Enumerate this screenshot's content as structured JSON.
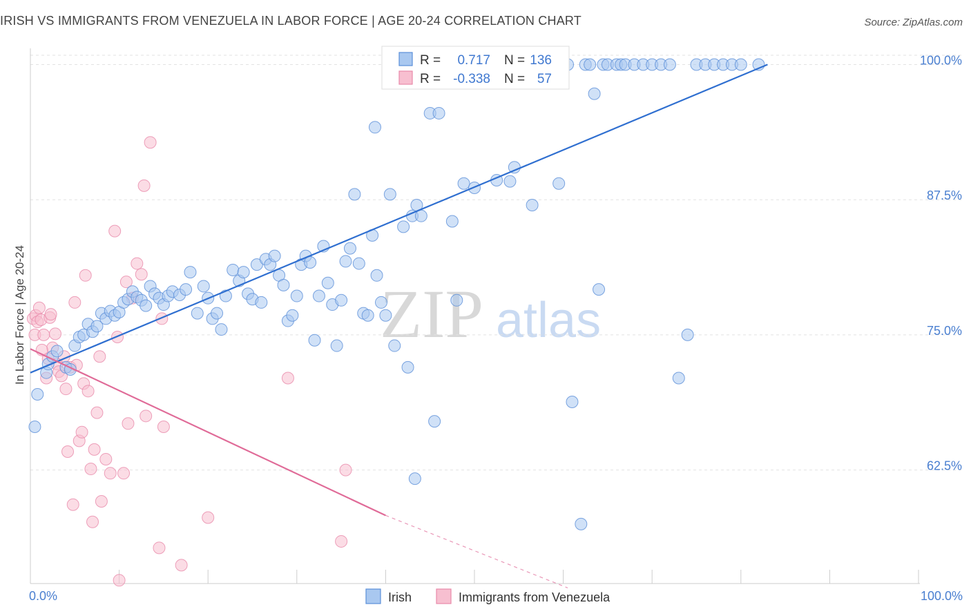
{
  "title": "IRISH VS IMMIGRANTS FROM VENEZUELA IN LABOR FORCE | AGE 20-24 CORRELATION CHART",
  "source": "Source: ZipAtlas.com",
  "watermark": {
    "zip": "ZIP",
    "atlas": "atlas"
  },
  "stats_legend": {
    "r_label": "R =",
    "n_label": "N =",
    "rows": [
      {
        "r": "0.717",
        "n": "136"
      },
      {
        "r": "-0.338",
        "n": "57"
      }
    ]
  },
  "chart_data": {
    "type": "scatter",
    "title": "IRISH VS IMMIGRANTS FROM VENEZUELA IN LABOR FORCE | AGE 20-24 CORRELATION CHART",
    "xlabel": "",
    "ylabel": "In Labor Force | Age 20-24",
    "xlim": [
      0,
      100
    ],
    "ylim": [
      52,
      101.5
    ],
    "x_tick_labels": [
      "0.0%",
      "100.0%"
    ],
    "y_ticks": [
      62.5,
      75.0,
      87.5,
      100.0
    ],
    "y_tick_labels": [
      "62.5%",
      "75.0%",
      "87.5%",
      "100.0%"
    ],
    "grid": true,
    "legend_position": "bottom-center",
    "colors": {
      "irish_fill": "#a9c8f0",
      "irish_stroke": "#5b8fd8",
      "irish_line": "#2f6fd0",
      "ven_fill": "#f7bfd0",
      "ven_stroke": "#e88aaa",
      "ven_line": "#e06b98"
    },
    "series": [
      {
        "name": "Irish",
        "trend": {
          "x0": 0,
          "y0": 71.5,
          "x1": 83,
          "y1": 100
        },
        "points": [
          [
            0.5,
            66.5
          ],
          [
            0.8,
            69.5
          ],
          [
            1.8,
            71.5
          ],
          [
            2.0,
            72.3
          ],
          [
            2.5,
            73.0
          ],
          [
            3.0,
            73.5
          ],
          [
            4.0,
            72.0
          ],
          [
            4.5,
            71.8
          ],
          [
            5.0,
            74.0
          ],
          [
            5.5,
            74.8
          ],
          [
            6.0,
            75.0
          ],
          [
            6.5,
            76.0
          ],
          [
            7.0,
            75.3
          ],
          [
            7.5,
            75.8
          ],
          [
            8.0,
            77.0
          ],
          [
            8.5,
            76.5
          ],
          [
            9.0,
            77.2
          ],
          [
            9.5,
            76.8
          ],
          [
            10.0,
            77.1
          ],
          [
            10.5,
            78.0
          ],
          [
            11.0,
            78.3
          ],
          [
            11.5,
            79.0
          ],
          [
            12.0,
            78.5
          ],
          [
            12.5,
            78.2
          ],
          [
            13.0,
            77.7
          ],
          [
            13.5,
            79.5
          ],
          [
            14.0,
            78.8
          ],
          [
            14.5,
            78.4
          ],
          [
            15.0,
            77.8
          ],
          [
            15.5,
            78.6
          ],
          [
            16.0,
            79.0
          ],
          [
            16.8,
            78.7
          ],
          [
            17.5,
            79.2
          ],
          [
            18.0,
            80.8
          ],
          [
            18.8,
            77.0
          ],
          [
            19.5,
            79.5
          ],
          [
            20.0,
            78.4
          ],
          [
            20.5,
            76.5
          ],
          [
            21.0,
            77.0
          ],
          [
            21.5,
            75.5
          ],
          [
            22.0,
            78.6
          ],
          [
            22.8,
            81.0
          ],
          [
            23.5,
            80.0
          ],
          [
            24.0,
            80.8
          ],
          [
            24.5,
            78.8
          ],
          [
            25.0,
            78.3
          ],
          [
            25.5,
            81.5
          ],
          [
            26.0,
            78.0
          ],
          [
            26.5,
            82.0
          ],
          [
            27.0,
            81.5
          ],
          [
            27.5,
            82.3
          ],
          [
            28.0,
            80.5
          ],
          [
            28.5,
            79.6
          ],
          [
            29.0,
            76.3
          ],
          [
            29.5,
            76.8
          ],
          [
            30.0,
            78.6
          ],
          [
            30.5,
            81.5
          ],
          [
            31.0,
            82.3
          ],
          [
            31.5,
            81.7
          ],
          [
            32.0,
            74.5
          ],
          [
            32.5,
            78.6
          ],
          [
            33.0,
            83.2
          ],
          [
            33.5,
            79.8
          ],
          [
            34.0,
            77.8
          ],
          [
            34.5,
            74.0
          ],
          [
            35.0,
            78.2
          ],
          [
            35.5,
            81.8
          ],
          [
            36.0,
            83.0
          ],
          [
            36.5,
            88.0
          ],
          [
            37.0,
            81.6
          ],
          [
            37.5,
            77.0
          ],
          [
            38.0,
            76.8
          ],
          [
            38.5,
            84.2
          ],
          [
            38.8,
            94.2
          ],
          [
            39.0,
            80.5
          ],
          [
            39.5,
            78.0
          ],
          [
            40.0,
            76.8
          ],
          [
            40.5,
            88.0
          ],
          [
            41.0,
            74.0
          ],
          [
            42.0,
            85.0
          ],
          [
            42.5,
            72.0
          ],
          [
            43.0,
            86.0
          ],
          [
            43.5,
            87.0
          ],
          [
            44.0,
            86.0
          ],
          [
            45.0,
            95.5
          ],
          [
            45.5,
            67.0
          ],
          [
            46.0,
            95.5
          ],
          [
            47.0,
            100
          ],
          [
            47.5,
            85.5
          ],
          [
            48.0,
            78.2
          ],
          [
            48.8,
            89.0
          ],
          [
            49.0,
            100
          ],
          [
            49.5,
            100
          ],
          [
            50.0,
            88.6
          ],
          [
            51.0,
            100
          ],
          [
            51.5,
            100
          ],
          [
            52.0,
            100
          ],
          [
            52.5,
            89.3
          ],
          [
            53.0,
            98.5
          ],
          [
            54.0,
            89.2
          ],
          [
            54.5,
            90.5
          ],
          [
            55.0,
            100
          ],
          [
            55.5,
            100
          ],
          [
            56.5,
            87.0
          ],
          [
            57.0,
            100
          ],
          [
            58.0,
            100
          ],
          [
            59.0,
            100
          ],
          [
            59.5,
            89.0
          ],
          [
            60.0,
            100
          ],
          [
            60.5,
            100
          ],
          [
            61.0,
            68.8
          ],
          [
            62.0,
            57.5
          ],
          [
            62.5,
            100
          ],
          [
            63.0,
            100
          ],
          [
            64.0,
            79.2
          ],
          [
            64.5,
            100
          ],
          [
            65.0,
            100
          ],
          [
            66.0,
            100
          ],
          [
            66.5,
            100
          ],
          [
            67.0,
            100
          ],
          [
            68.0,
            100
          ],
          [
            69.0,
            100
          ],
          [
            70.0,
            100
          ],
          [
            71.0,
            100
          ],
          [
            72.0,
            100
          ],
          [
            73.0,
            71.0
          ],
          [
            74.0,
            75.0
          ],
          [
            75.0,
            100
          ],
          [
            76.0,
            100
          ],
          [
            77.0,
            100
          ],
          [
            78.0,
            100
          ],
          [
            79.0,
            100
          ],
          [
            80.0,
            100
          ],
          [
            82.0,
            100
          ],
          [
            63.5,
            97.3
          ],
          [
            43.3,
            61.7
          ]
        ]
      },
      {
        "name": "Immigrants from Venezuela",
        "trend": {
          "x0": 0,
          "y0": 73.7,
          "x1": 40,
          "y1": 58.3
        },
        "trend_dashed": {
          "x0": 40,
          "y0": 58.3,
          "x1": 60.5,
          "y1": 51.6
        },
        "points": [
          [
            0.3,
            76.5
          ],
          [
            0.5,
            75.0
          ],
          [
            0.6,
            76.8
          ],
          [
            0.8,
            76.2
          ],
          [
            1.0,
            77.5
          ],
          [
            1.2,
            76.4
          ],
          [
            1.5,
            75.0
          ],
          [
            1.8,
            71.0
          ],
          [
            2.0,
            72.8
          ],
          [
            2.2,
            76.6
          ],
          [
            2.5,
            73.8
          ],
          [
            2.8,
            75.1
          ],
          [
            3.0,
            72.3
          ],
          [
            3.2,
            71.6
          ],
          [
            3.5,
            71.2
          ],
          [
            3.8,
            73.0
          ],
          [
            4.0,
            70.0
          ],
          [
            4.2,
            64.2
          ],
          [
            4.5,
            72.0
          ],
          [
            4.8,
            59.3
          ],
          [
            5.0,
            78.0
          ],
          [
            5.2,
            72.2
          ],
          [
            5.5,
            65.2
          ],
          [
            5.8,
            66.0
          ],
          [
            6.0,
            70.5
          ],
          [
            6.2,
            80.5
          ],
          [
            6.5,
            69.8
          ],
          [
            6.8,
            62.6
          ],
          [
            7.0,
            57.7
          ],
          [
            7.2,
            64.4
          ],
          [
            7.5,
            67.8
          ],
          [
            7.8,
            73.0
          ],
          [
            8.0,
            59.6
          ],
          [
            8.5,
            63.5
          ],
          [
            9.0,
            62.2
          ],
          [
            9.5,
            84.6
          ],
          [
            9.8,
            74.8
          ],
          [
            10.0,
            52.3
          ],
          [
            10.5,
            62.2
          ],
          [
            10.8,
            79.9
          ],
          [
            11.0,
            66.8
          ],
          [
            11.5,
            78.4
          ],
          [
            12.0,
            81.6
          ],
          [
            12.5,
            80.6
          ],
          [
            12.8,
            88.8
          ],
          [
            13.0,
            67.5
          ],
          [
            13.5,
            92.8
          ],
          [
            14.5,
            55.3
          ],
          [
            15.0,
            66.5
          ],
          [
            14.8,
            76.5
          ],
          [
            17.0,
            53.7
          ],
          [
            20.0,
            58.1
          ],
          [
            29.0,
            71.0
          ],
          [
            35.5,
            62.5
          ],
          [
            35.0,
            55.9
          ],
          [
            2.3,
            76.9
          ],
          [
            1.3,
            73.6
          ]
        ]
      }
    ]
  }
}
